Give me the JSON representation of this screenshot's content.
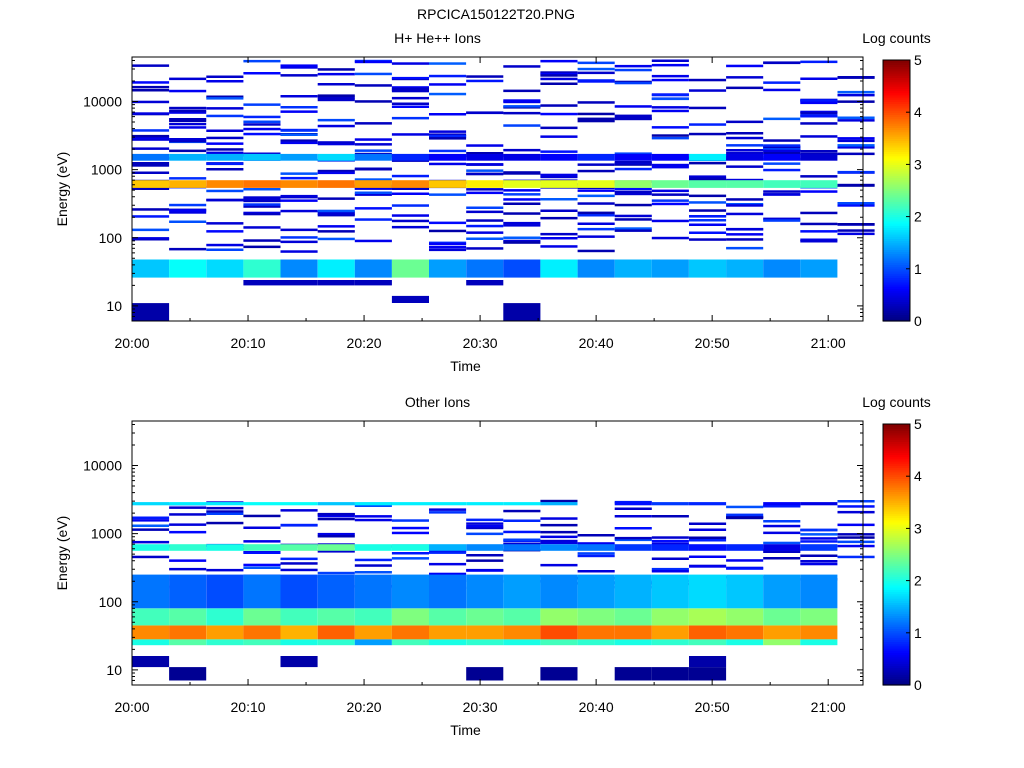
{
  "figure_title": "RPCICA150122T20.PNG",
  "colormap": [
    "#00007f",
    "#0000ff",
    "#007fff",
    "#00ffff",
    "#7fff7f",
    "#ffff00",
    "#ff7f00",
    "#ff0000",
    "#7f0000"
  ],
  "chart_data": [
    {
      "type": "heatmap",
      "title": "H+ He++ Ions",
      "xlabel": "Time",
      "ylabel": "Energy (eV)",
      "x_ticks": [
        "20:00",
        "20:10",
        "20:20",
        "20:30",
        "20:40",
        "20:50",
        "21:00"
      ],
      "x_tick_minutes": [
        0,
        10,
        20,
        30,
        40,
        50,
        60
      ],
      "xlim_minutes": [
        0,
        63
      ],
      "y_ticks": [
        "10",
        "100",
        "1000",
        "10000"
      ],
      "y_tick_values": [
        10,
        100,
        1000,
        10000
      ],
      "ylim": [
        6,
        45000
      ],
      "yscale": "log",
      "colorbar": {
        "label": "Log counts",
        "ticks": [
          "0",
          "1",
          "2",
          "3",
          "4",
          "5"
        ],
        "range": [
          0,
          5
        ]
      },
      "time_bins_minutes": [
        0,
        3.2,
        6.4,
        9.6,
        12.8,
        16,
        19.2,
        22.4,
        25.6,
        28.8,
        32,
        35.2,
        38.4,
        41.6,
        44.8,
        48,
        51.2,
        54.4,
        57.6,
        60.8
      ],
      "features": [
        {
          "e_min": 540,
          "e_max": 700,
          "log_counts": [
            3.4,
            3.5,
            3.7,
            3.8,
            3.7,
            3.8,
            3.6,
            3.7,
            3.4,
            3.2,
            3.0,
            3.0,
            3.0,
            2.6,
            2.4,
            2.3,
            2.3,
            2.2,
            2.2
          ]
        },
        {
          "e_min": 26,
          "e_max": 48,
          "log_counts": [
            1.6,
            1.9,
            1.7,
            2.1,
            1.3,
            1.8,
            1.3,
            2.4,
            1.4,
            1.2,
            1.0,
            1.8,
            1.3,
            1.5,
            1.4,
            1.6,
            1.5,
            1.3,
            1.4
          ]
        },
        {
          "e_min": 1350,
          "e_max": 1700,
          "log_counts": [
            1.2,
            1.5,
            1.5,
            1.6,
            1.4,
            1.7,
            1.2,
            0.8,
            0.6,
            0.5,
            0.5,
            0.6,
            0.8,
            0.6,
            0.6,
            1.8,
            0.5,
            0.6,
            0.4
          ]
        },
        {
          "e_min": 20,
          "e_max": 24,
          "bins": [
            3,
            4,
            5,
            6,
            9
          ],
          "log_counts": [
            0.3,
            0.3,
            0.3,
            0.3,
            0.3
          ]
        },
        {
          "e_min": 6,
          "e_max": 11,
          "bins": [
            0,
            10
          ],
          "log_counts": [
            0.2,
            0.2
          ]
        },
        {
          "e_min": 11,
          "e_max": 14,
          "bins": [
            7
          ],
          "log_counts": [
            0.3
          ]
        }
      ]
    },
    {
      "type": "heatmap",
      "title": "Other Ions",
      "xlabel": "Time",
      "ylabel": "Energy (eV)",
      "x_ticks": [
        "20:00",
        "20:10",
        "20:20",
        "20:30",
        "20:40",
        "20:50",
        "21:00"
      ],
      "x_tick_minutes": [
        0,
        10,
        20,
        30,
        40,
        50,
        60
      ],
      "xlim_minutes": [
        0,
        63
      ],
      "y_ticks": [
        "10",
        "100",
        "1000",
        "10000"
      ],
      "y_tick_values": [
        10,
        100,
        1000,
        10000
      ],
      "ylim": [
        6,
        45000
      ],
      "yscale": "log",
      "colorbar": {
        "label": "Log counts",
        "ticks": [
          "0",
          "1",
          "2",
          "3",
          "4",
          "5"
        ],
        "range": [
          0,
          5
        ]
      },
      "time_bins_minutes": [
        0,
        3.2,
        6.4,
        9.6,
        12.8,
        16,
        19.2,
        22.4,
        25.6,
        28.8,
        32,
        35.2,
        38.4,
        41.6,
        44.8,
        48,
        51.2,
        54.4,
        57.6,
        60.8
      ],
      "features": [
        {
          "e_min": 28,
          "e_max": 45,
          "log_counts": [
            3.7,
            3.8,
            3.6,
            3.8,
            3.5,
            3.9,
            3.6,
            3.8,
            3.6,
            3.6,
            3.7,
            4.0,
            3.8,
            3.8,
            3.6,
            3.9,
            3.8,
            3.6,
            3.7
          ]
        },
        {
          "e_min": 45,
          "e_max": 80,
          "log_counts": [
            2.2,
            2.3,
            2.1,
            2.4,
            2.2,
            2.3,
            2.2,
            2.5,
            2.3,
            2.4,
            2.3,
            2.6,
            2.5,
            2.4,
            2.6,
            2.7,
            2.6,
            2.4,
            2.5
          ]
        },
        {
          "e_min": 80,
          "e_max": 250,
          "log_counts": [
            1.2,
            1.1,
            1.0,
            1.2,
            1.0,
            1.1,
            1.2,
            1.3,
            1.2,
            1.3,
            1.4,
            1.3,
            1.4,
            1.5,
            1.6,
            1.7,
            1.6,
            1.4,
            1.3
          ]
        },
        {
          "e_min": 23,
          "e_max": 28,
          "log_counts": [
            2.0,
            2.3,
            2.1,
            2.2,
            2.0,
            2.1,
            1.4,
            2.2,
            2.0,
            2.1,
            2.0,
            2.2,
            2.1,
            2.0,
            2.1,
            2.2,
            2.0,
            2.6,
            2.0
          ]
        },
        {
          "e_min": 560,
          "e_max": 700,
          "log_counts": [
            2.0,
            2.1,
            2.0,
            2.2,
            2.3,
            2.4,
            2.0,
            2.0,
            1.5,
            1.3,
            1.2,
            1.3,
            1.2,
            0.9,
            0.8,
            0.7,
            0.8,
            0.5,
            0.9
          ]
        },
        {
          "e_min": 2600,
          "e_max": 2900,
          "log_counts": [
            1.7,
            1.8,
            1.8,
            1.9,
            1.9,
            1.6,
            1.8,
            1.8,
            1.8,
            1.8,
            1.8,
            1.5,
            0,
            0.7,
            0.9,
            0.8,
            0,
            0.6,
            0.5
          ]
        },
        {
          "e_min": 7,
          "e_max": 11,
          "bins": [
            1,
            9,
            11,
            13,
            14,
            15
          ],
          "log_counts": [
            0.1,
            0.1,
            0.1,
            0.1,
            0.1,
            0.1
          ]
        },
        {
          "e_min": 11,
          "e_max": 16,
          "bins": [
            0,
            4,
            15
          ],
          "log_counts": [
            0.2,
            0.2,
            0.2
          ]
        }
      ]
    }
  ]
}
